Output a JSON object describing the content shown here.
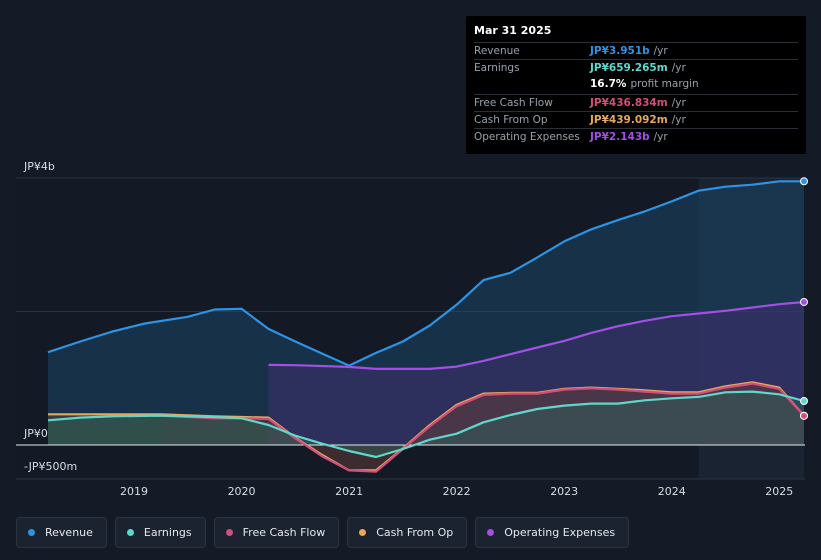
{
  "chart_data": {
    "type": "area",
    "title": "",
    "xlabel": "",
    "ylabel": "",
    "unit": "JP¥",
    "ylim": [
      -500,
      4000
    ],
    "y_axis_labels": [
      {
        "value": 4000,
        "label": "JP¥4b"
      },
      {
        "value": 0,
        "label": "JP¥0"
      },
      {
        "value": -500,
        "label": "-JP¥500m"
      }
    ],
    "x_ticks": [
      2019,
      2020,
      2021,
      2022,
      2023,
      2024,
      2025
    ],
    "xlim": [
      2018.2,
      2025.23
    ],
    "forecast_shade_start": 2024.25,
    "series": [
      {
        "name": "Revenue",
        "color": "#2e93e5",
        "fill": "#1a4a6b",
        "fill_opacity": 0.5,
        "x": [
          2018.2,
          2018.5,
          2018.8,
          2019.1,
          2019.5,
          2019.75,
          2020.0,
          2020.25,
          2020.5,
          2020.75,
          2021.0,
          2021.25,
          2021.5,
          2021.75,
          2022.0,
          2022.25,
          2022.5,
          2022.75,
          2023.0,
          2023.25,
          2023.5,
          2023.75,
          2024.0,
          2024.25,
          2024.5,
          2024.75,
          2025.0,
          2025.23
        ],
        "y": [
          1390,
          1550,
          1700,
          1820,
          1920,
          2030,
          2040,
          1740,
          1550,
          1370,
          1190,
          1380,
          1550,
          1790,
          2100,
          2470,
          2580,
          2810,
          3050,
          3230,
          3370,
          3500,
          3650,
          3810,
          3870,
          3900,
          3951,
          3951
        ]
      },
      {
        "name": "Operating Expenses",
        "color": "#a24fe6",
        "fill": "#4a2d76",
        "fill_opacity": 0.45,
        "x": [
          2020.25,
          2020.5,
          2021.0,
          2021.25,
          2021.75,
          2022.0,
          2022.25,
          2022.5,
          2022.75,
          2023.0,
          2023.25,
          2023.5,
          2023.75,
          2024.0,
          2024.25,
          2024.5,
          2024.75,
          2025.0,
          2025.23
        ],
        "y": [
          1200,
          1195,
          1170,
          1140,
          1140,
          1175,
          1260,
          1360,
          1460,
          1560,
          1680,
          1780,
          1860,
          1930,
          1970,
          2010,
          2060,
          2110,
          2143
        ]
      },
      {
        "name": "Cash From Op",
        "color": "#e8a85a",
        "fill": "#6b5232",
        "fill_opacity": 0.35,
        "x": [
          2018.2,
          2018.5,
          2018.8,
          2019.25,
          2019.75,
          2020.0,
          2020.25,
          2020.5,
          2020.75,
          2021.0,
          2021.25,
          2021.5,
          2021.75,
          2022.0,
          2022.25,
          2022.5,
          2022.75,
          2023.0,
          2023.25,
          2023.5,
          2023.75,
          2024.0,
          2024.25,
          2024.5,
          2024.75,
          2025.0,
          2025.23
        ],
        "y": [
          460,
          460,
          460,
          460,
          430,
          420,
          410,
          110,
          -150,
          -380,
          -380,
          -50,
          300,
          600,
          770,
          780,
          780,
          840,
          860,
          840,
          820,
          790,
          790,
          880,
          940,
          860,
          439
        ]
      },
      {
        "name": "Free Cash Flow",
        "color": "#d14f7b",
        "fill": "#5a2b3f",
        "fill_opacity": 0.3,
        "x": [
          2019.25,
          2019.75,
          2020.0,
          2020.25,
          2020.5,
          2020.75,
          2021.0,
          2021.25,
          2021.5,
          2021.75,
          2022.0,
          2022.25,
          2022.5,
          2022.75,
          2023.0,
          2023.25,
          2023.5,
          2023.75,
          2024.0,
          2024.25,
          2024.5,
          2024.75,
          2025.0,
          2025.23
        ],
        "y": [
          440,
          400,
          400,
          390,
          100,
          -170,
          -380,
          -400,
          -60,
          280,
          580,
          750,
          770,
          770,
          830,
          850,
          830,
          800,
          770,
          770,
          860,
          920,
          840,
          437
        ]
      },
      {
        "name": "Earnings",
        "color": "#5ed8cc",
        "fill": "#2a6b5e",
        "fill_opacity": 0.4,
        "x": [
          2018.2,
          2018.5,
          2018.8,
          2019.25,
          2019.75,
          2020.0,
          2020.25,
          2020.5,
          2020.75,
          2021.0,
          2021.25,
          2021.5,
          2021.75,
          2022.0,
          2022.25,
          2022.5,
          2022.75,
          2023.0,
          2023.25,
          2023.5,
          2023.75,
          2024.0,
          2024.25,
          2024.5,
          2024.75,
          2025.0,
          2025.23
        ],
        "y": [
          370,
          410,
          430,
          440,
          420,
          400,
          300,
          140,
          20,
          -90,
          -180,
          -60,
          80,
          170,
          340,
          450,
          540,
          590,
          620,
          620,
          670,
          700,
          720,
          790,
          800,
          760,
          659
        ]
      }
    ],
    "tooltip": {
      "date": "Mar 31 2025",
      "rows": [
        {
          "label": "Revenue",
          "value": "JP¥3.951b",
          "unit": "/yr",
          "color": "#2e93e5"
        },
        {
          "label": "Earnings",
          "value": "JP¥659.265m",
          "unit": "/yr",
          "color": "#5ed8cc"
        },
        {
          "label": "",
          "value": "16.7%",
          "unit": "profit margin",
          "color": "#ffffff"
        },
        {
          "label": "Free Cash Flow",
          "value": "JP¥436.834m",
          "unit": "/yr",
          "color": "#d14f7b"
        },
        {
          "label": "Cash From Op",
          "value": "JP¥439.092m",
          "unit": "/yr",
          "color": "#e8a85a"
        },
        {
          "label": "Operating Expenses",
          "value": "JP¥2.143b",
          "unit": "/yr",
          "color": "#a24fe6"
        }
      ]
    },
    "legend": [
      {
        "name": "Revenue",
        "color": "#2e93e5"
      },
      {
        "name": "Earnings",
        "color": "#5ed8cc"
      },
      {
        "name": "Free Cash Flow",
        "color": "#d14f7b"
      },
      {
        "name": "Cash From Op",
        "color": "#e8a85a"
      },
      {
        "name": "Operating Expenses",
        "color": "#a24fe6"
      }
    ]
  }
}
